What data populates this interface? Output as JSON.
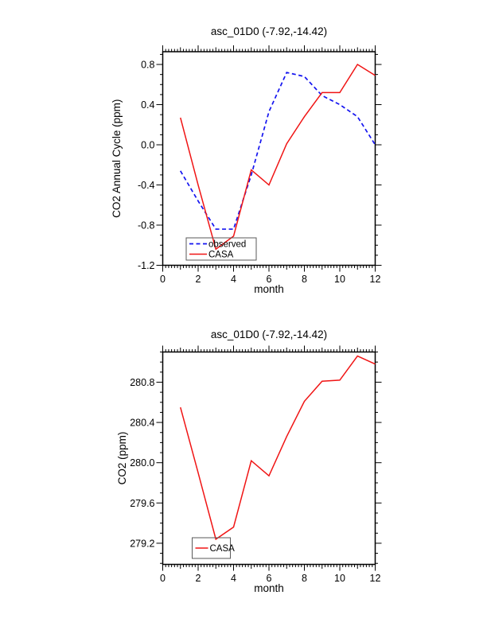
{
  "figure": {
    "background": "#ffffff",
    "accent_colors": {
      "observed": "#1414f0",
      "casa": "#f01414",
      "axis": "#000000",
      "legend_border": "#5a5a5a"
    }
  },
  "chart_data": [
    {
      "type": "line",
      "title": "asc_01D0 (-7.92,-14.42)",
      "xlabel": "month",
      "ylabel": "CO2 Annual Cycle (ppm)",
      "x": [
        1,
        2,
        3,
        4,
        5,
        6,
        7,
        8,
        9,
        10,
        11,
        12
      ],
      "xlim": [
        0,
        12
      ],
      "ylim": [
        -1.2,
        0.927
      ],
      "xticks": [
        0,
        2,
        4,
        6,
        8,
        10,
        12
      ],
      "xtick_labels": [
        "0",
        "2",
        "4",
        "6",
        "8",
        "10",
        "12"
      ],
      "yticks": [
        0.8,
        0.4,
        0.0,
        -0.4,
        -0.8,
        -1.2
      ],
      "ytick_labels": [
        "0.8",
        "0.4",
        "0.0",
        "-0.4",
        "-0.8",
        "-1.2"
      ],
      "grid": false,
      "legend": {
        "position": "inside-bottom-left",
        "entries": [
          "observed",
          "CASA"
        ]
      },
      "series": [
        {
          "name": "observed",
          "color": "#1414f0",
          "style": "dashed",
          "values": [
            -0.26,
            -0.56,
            -0.84,
            -0.84,
            -0.3,
            0.33,
            0.72,
            0.68,
            0.49,
            0.4,
            0.28,
            0.0
          ]
        },
        {
          "name": "CASA",
          "color": "#f01414",
          "style": "solid",
          "values": [
            0.27,
            -0.4,
            -1.04,
            -0.91,
            -0.25,
            -0.4,
            0.01,
            0.28,
            0.52,
            0.52,
            0.8,
            0.69
          ]
        }
      ]
    },
    {
      "type": "line",
      "title": "asc_01D0 (-7.92,-14.42)",
      "xlabel": "month",
      "ylabel": "CO2 (ppm)",
      "x": [
        1,
        2,
        3,
        4,
        5,
        6,
        7,
        8,
        9,
        10,
        11,
        12
      ],
      "xlim": [
        0,
        12
      ],
      "ylim": [
        278.99,
        281.1
      ],
      "xticks": [
        0,
        2,
        4,
        6,
        8,
        10,
        12
      ],
      "xtick_labels": [
        "0",
        "2",
        "4",
        "6",
        "8",
        "10",
        "12"
      ],
      "yticks": [
        280.8,
        280.4,
        280.0,
        279.6,
        279.2
      ],
      "ytick_labels": [
        "280.8",
        "280.4",
        "280.0",
        "279.6",
        "279.2"
      ],
      "grid": false,
      "legend": {
        "position": "inside-bottom-left",
        "entries": [
          "CASA"
        ]
      },
      "series": [
        {
          "name": "CASA",
          "color": "#f01414",
          "style": "solid",
          "values": [
            280.55,
            279.9,
            279.24,
            279.36,
            280.02,
            279.87,
            280.26,
            280.61,
            280.81,
            280.82,
            281.06,
            280.98
          ]
        }
      ]
    }
  ]
}
